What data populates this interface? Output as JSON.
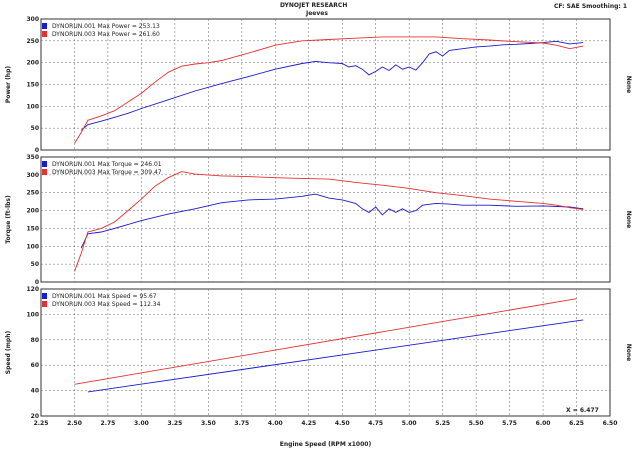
{
  "header": {
    "title": "DYNOJET RESEARCH",
    "subtitle": "Jeeves",
    "status": "CF: SAE  Smoothing: 1"
  },
  "xaxis": {
    "label": "Engine Speed (RPM x1000)",
    "range": [
      2.25,
      6.5
    ],
    "ticks": [
      "2.25",
      "2.50",
      "2.75",
      "3.00",
      "3.25",
      "3.50",
      "3.75",
      "4.00",
      "4.25",
      "4.50",
      "4.75",
      "5.00",
      "5.25",
      "5.50",
      "5.75",
      "6.00",
      "6.25",
      "6.50"
    ]
  },
  "cursor_readout": "X = 6.477",
  "colors": {
    "run001": "#1a1ad0",
    "run003": "#e83030",
    "grid": "#555555"
  },
  "chart_data": [
    {
      "type": "line",
      "ylabel": "Power (hp)",
      "right_label": "None",
      "ylim": [
        0,
        300
      ],
      "yticks": [
        "0",
        "50",
        "100",
        "150",
        "200",
        "250",
        "300"
      ],
      "legend": [
        "DYNORUN.001 Max Power = 253.13",
        "DYNORUN.003 Max Power = 261.60"
      ],
      "series": [
        {
          "name": "DYNORUN.001",
          "color": "run001",
          "x": [
            2.55,
            2.6,
            2.7,
            2.8,
            2.9,
            3.0,
            3.2,
            3.4,
            3.6,
            3.8,
            4.0,
            4.2,
            4.3,
            4.4,
            4.5,
            4.55,
            4.6,
            4.65,
            4.7,
            4.75,
            4.8,
            4.85,
            4.9,
            4.95,
            5.0,
            5.05,
            5.1,
            5.15,
            5.2,
            5.25,
            5.3,
            5.4,
            5.5,
            5.6,
            5.7,
            5.8,
            5.9,
            6.0,
            6.1,
            6.2,
            6.3
          ],
          "y": [
            45,
            58,
            66,
            75,
            84,
            95,
            115,
            135,
            152,
            168,
            185,
            198,
            203,
            200,
            198,
            190,
            193,
            185,
            172,
            180,
            190,
            182,
            195,
            185,
            190,
            183,
            200,
            220,
            225,
            215,
            228,
            232,
            236,
            238,
            241,
            242,
            244,
            246,
            249,
            243,
            246
          ]
        },
        {
          "name": "DYNORUN.003",
          "color": "run003",
          "x": [
            2.5,
            2.55,
            2.6,
            2.7,
            2.8,
            2.9,
            3.0,
            3.1,
            3.2,
            3.3,
            3.4,
            3.5,
            3.6,
            3.8,
            4.0,
            4.2,
            4.4,
            4.6,
            4.8,
            5.0,
            5.2,
            5.4,
            5.6,
            5.8,
            6.0,
            6.1,
            6.2,
            6.3
          ],
          "y": [
            15,
            40,
            68,
            78,
            90,
            110,
            130,
            155,
            178,
            192,
            197,
            200,
            205,
            222,
            240,
            250,
            253,
            256,
            259,
            259,
            259,
            255,
            252,
            248,
            245,
            240,
            232,
            238
          ]
        }
      ]
    },
    {
      "type": "line",
      "ylabel": "Torque (ft-lbs)",
      "right_label": "None",
      "ylim": [
        0,
        350
      ],
      "yticks": [
        "0",
        "50",
        "100",
        "150",
        "200",
        "250",
        "300",
        "350"
      ],
      "legend": [
        "DYNORUN.001 Max Torque = 246.01",
        "DYNORUN.003 Max Torque = 309.47"
      ],
      "series": [
        {
          "name": "DYNORUN.001",
          "color": "run001",
          "x": [
            2.55,
            2.6,
            2.7,
            2.8,
            3.0,
            3.2,
            3.4,
            3.6,
            3.8,
            4.0,
            4.2,
            4.3,
            4.4,
            4.5,
            4.6,
            4.65,
            4.7,
            4.75,
            4.8,
            4.85,
            4.9,
            4.95,
            5.0,
            5.05,
            5.1,
            5.2,
            5.3,
            5.4,
            5.6,
            5.8,
            6.0,
            6.2,
            6.3
          ],
          "y": [
            95,
            135,
            140,
            150,
            172,
            190,
            205,
            222,
            230,
            232,
            240,
            246,
            235,
            230,
            220,
            205,
            195,
            210,
            188,
            205,
            195,
            205,
            195,
            200,
            215,
            220,
            218,
            215,
            215,
            212,
            213,
            210,
            205
          ]
        },
        {
          "name": "DYNORUN.003",
          "color": "run003",
          "x": [
            2.5,
            2.55,
            2.6,
            2.7,
            2.8,
            2.9,
            3.0,
            3.1,
            3.2,
            3.3,
            3.4,
            3.6,
            3.8,
            4.0,
            4.2,
            4.4,
            4.6,
            4.8,
            5.0,
            5.2,
            5.4,
            5.6,
            5.8,
            6.0,
            6.1,
            6.2,
            6.3
          ],
          "y": [
            30,
            80,
            140,
            150,
            168,
            200,
            232,
            268,
            292,
            309,
            302,
            297,
            295,
            292,
            290,
            288,
            279,
            271,
            262,
            250,
            242,
            232,
            226,
            220,
            215,
            208,
            203
          ]
        }
      ]
    },
    {
      "type": "line",
      "ylabel": "Speed (mph)",
      "right_label": "None",
      "ylim": [
        20,
        120
      ],
      "yticks": [
        "20",
        "40",
        "60",
        "80",
        "100",
        "120"
      ],
      "legend": [
        "DYNORUN.001 Max Speed = 95.67",
        "DYNORUN.003 Max Speed = 112.34"
      ],
      "series": [
        {
          "name": "DYNORUN.001",
          "color": "run001",
          "x": [
            2.6,
            6.3
          ],
          "y": [
            39,
            95.67
          ]
        },
        {
          "name": "DYNORUN.003",
          "color": "run003",
          "x": [
            2.5,
            6.25
          ],
          "y": [
            45,
            112.34
          ]
        }
      ]
    }
  ]
}
